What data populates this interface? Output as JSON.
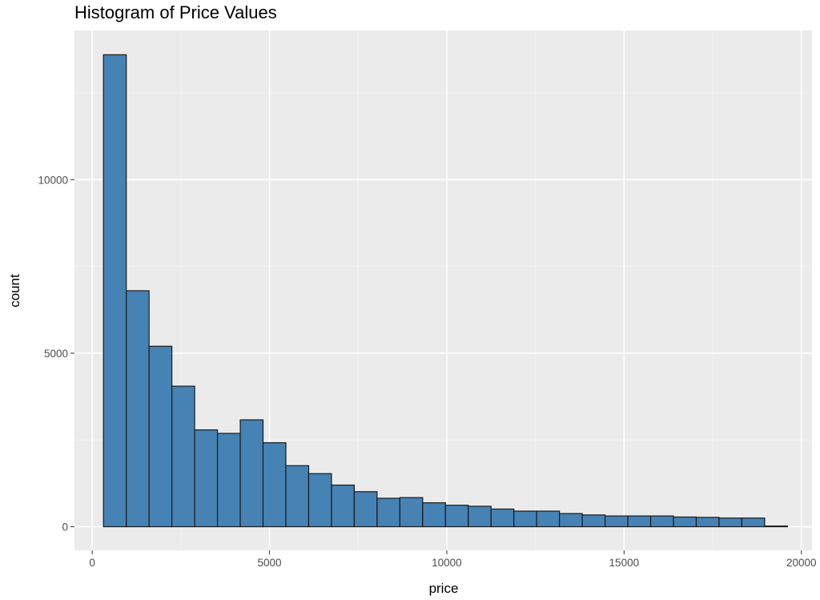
{
  "chart_data": {
    "type": "bar",
    "title": "Histogram of Price Values",
    "xlabel": "price",
    "ylabel": "count",
    "xlim": [
      -500,
      20300
    ],
    "ylim": [
      -680,
      14300
    ],
    "x_ticks": [
      0,
      5000,
      10000,
      15000,
      20000
    ],
    "x_tick_labels": [
      "0",
      "5000",
      "10000",
      "15000",
      "20000"
    ],
    "y_ticks": [
      0,
      5000,
      10000
    ],
    "y_tick_labels": [
      "0",
      "5000",
      "10000"
    ],
    "grid": true,
    "legend": "none",
    "fill_color": "#4682b4",
    "edge_color": "#1a1a1a",
    "panel_color": "#ebebeb",
    "bin_width": 643,
    "bin_start": 318,
    "values": [
      13600,
      6800,
      5200,
      4050,
      2790,
      2690,
      3080,
      2420,
      1760,
      1530,
      1200,
      1010,
      820,
      840,
      690,
      620,
      590,
      510,
      450,
      450,
      380,
      340,
      310,
      310,
      310,
      280,
      270,
      250,
      250,
      20
    ]
  }
}
